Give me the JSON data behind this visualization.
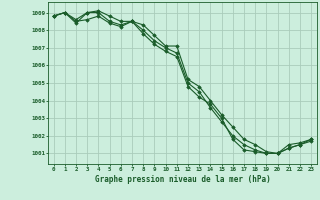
{
  "title": "Graphe pression niveau de la mer (hPa)",
  "bg_color": "#cceedd",
  "grid_color": "#aaccbb",
  "line_color": "#1a5c2a",
  "xlim": [
    -0.5,
    23.5
  ],
  "ylim": [
    1000.4,
    1009.6
  ],
  "yticks": [
    1001,
    1002,
    1003,
    1004,
    1005,
    1006,
    1007,
    1008,
    1009
  ],
  "xticks": [
    0,
    1,
    2,
    3,
    4,
    5,
    6,
    7,
    8,
    9,
    10,
    11,
    12,
    13,
    14,
    15,
    16,
    17,
    18,
    19,
    20,
    21,
    22,
    23
  ],
  "series1": [
    1008.8,
    1009.0,
    1008.6,
    1009.0,
    1009.1,
    1008.8,
    1008.5,
    1008.5,
    1008.3,
    1007.7,
    1007.1,
    1007.1,
    1005.2,
    1004.8,
    1004.0,
    1003.2,
    1002.5,
    1001.8,
    1001.5,
    1001.1,
    1001.0,
    1001.5,
    1001.6,
    1001.8
  ],
  "series2": [
    1008.8,
    1009.0,
    1008.4,
    1009.0,
    1009.0,
    1008.5,
    1008.3,
    1008.5,
    1008.0,
    1007.4,
    1007.0,
    1006.7,
    1005.0,
    1004.5,
    1003.6,
    1002.8,
    1002.0,
    1001.5,
    1001.2,
    1001.0,
    1001.0,
    1001.3,
    1001.5,
    1001.7
  ],
  "series3": [
    1008.8,
    1009.0,
    1008.5,
    1008.6,
    1008.8,
    1008.4,
    1008.2,
    1008.5,
    1007.8,
    1007.2,
    1006.8,
    1006.5,
    1004.8,
    1004.2,
    1003.8,
    1003.0,
    1001.8,
    1001.2,
    1001.1,
    1001.0,
    1001.0,
    1001.3,
    1001.5,
    1001.8
  ],
  "figwidth": 3.2,
  "figheight": 2.0,
  "dpi": 100
}
